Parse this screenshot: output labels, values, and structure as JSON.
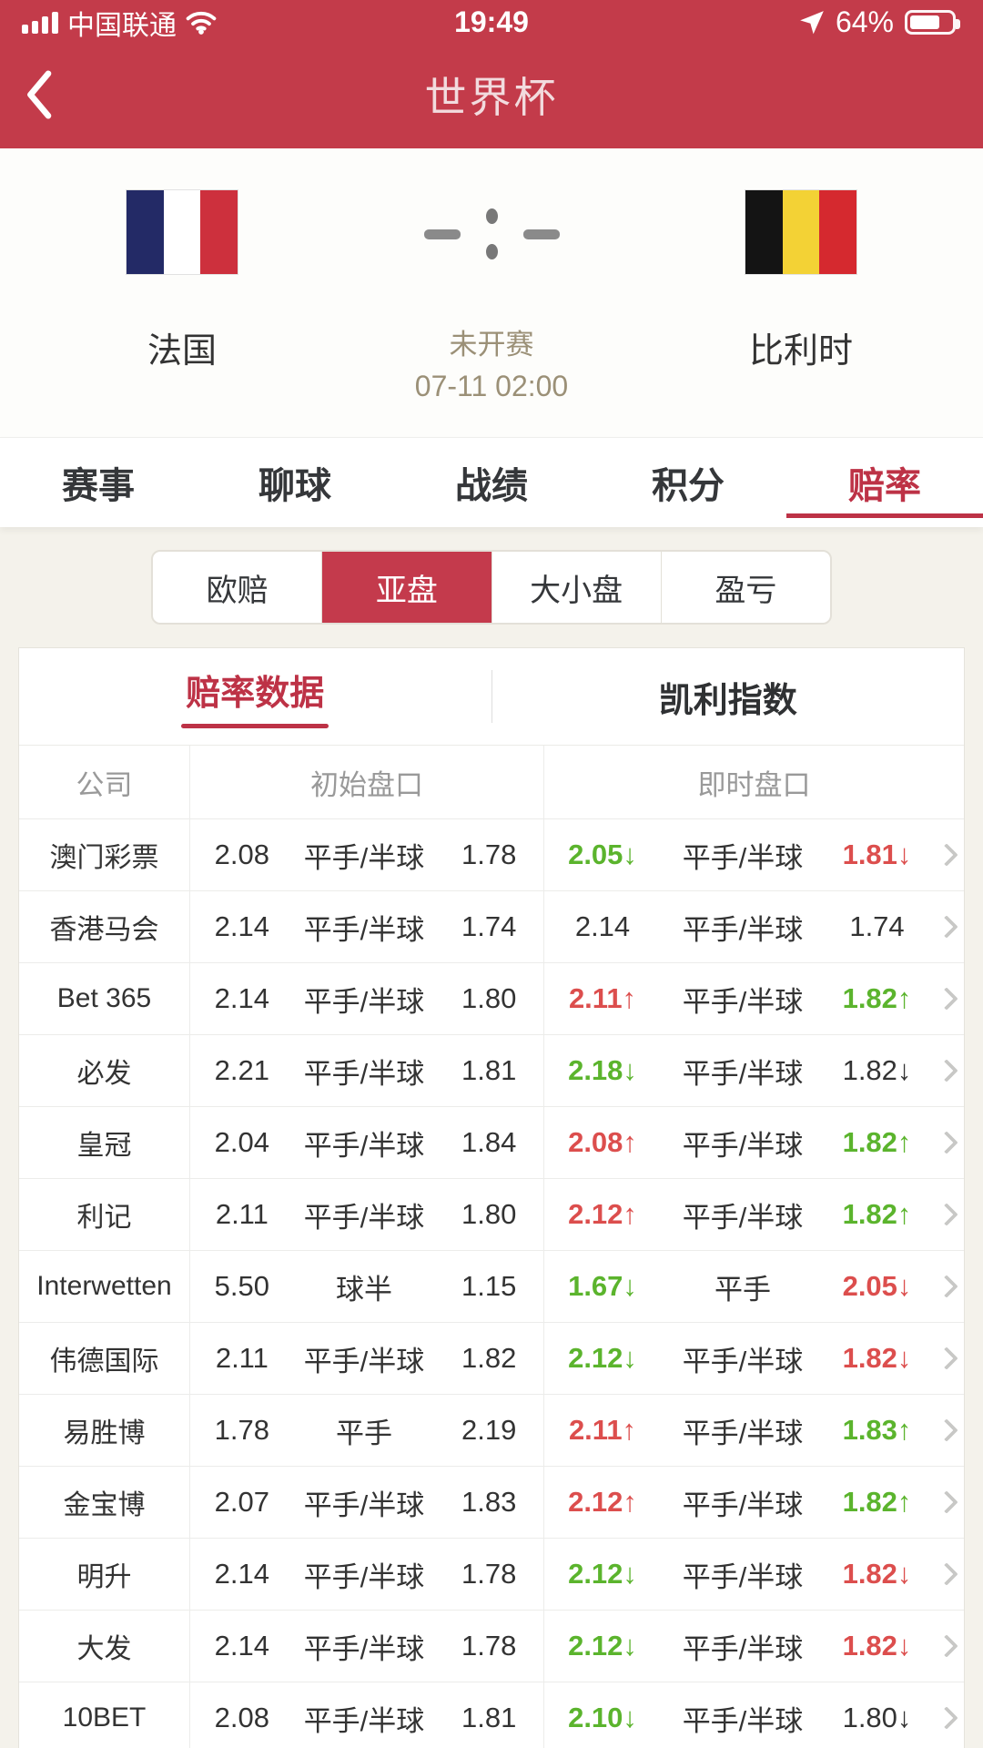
{
  "status_bar": {
    "carrier": "中国联通",
    "time": "19:49",
    "battery_percent": "64%",
    "battery_level": 0.64
  },
  "header": {
    "title": "世界杯"
  },
  "match": {
    "home": {
      "name": "法国",
      "flag": "france"
    },
    "away": {
      "name": "比利时",
      "flag": "belgium"
    },
    "score_home": "-",
    "score_away": "-",
    "status": "未开赛",
    "start_time": "07-11 02:00"
  },
  "tabs": [
    {
      "label": "赛事",
      "active": false
    },
    {
      "label": "聊球",
      "active": false
    },
    {
      "label": "战绩",
      "active": false
    },
    {
      "label": "积分",
      "active": false
    },
    {
      "label": "赔率",
      "active": true
    }
  ],
  "odds_tabs": [
    {
      "label": "欧赔",
      "active": false
    },
    {
      "label": "亚盘",
      "active": true
    },
    {
      "label": "大小盘",
      "active": false
    },
    {
      "label": "盈亏",
      "active": false
    }
  ],
  "card_tabs": [
    {
      "label": "赔率数据",
      "active": true
    },
    {
      "label": "凯利指数",
      "active": false
    }
  ],
  "table": {
    "columns": [
      "公司",
      "初始盘口",
      "即时盘口"
    ],
    "rows": [
      {
        "company": "澳门彩票",
        "init": [
          "2.08",
          "平手/半球",
          "1.78"
        ],
        "live": [
          {
            "value": "2.05",
            "arrow": "down",
            "color": "green"
          },
          {
            "value": "平手/半球",
            "arrow": "",
            "color": "dark"
          },
          {
            "value": "1.81",
            "arrow": "down",
            "color": "red"
          }
        ]
      },
      {
        "company": "香港马会",
        "init": [
          "2.14",
          "平手/半球",
          "1.74"
        ],
        "live": [
          {
            "value": "2.14",
            "arrow": "",
            "color": "dark"
          },
          {
            "value": "平手/半球",
            "arrow": "",
            "color": "dark"
          },
          {
            "value": "1.74",
            "arrow": "",
            "color": "dark"
          }
        ]
      },
      {
        "company": "Bet 365",
        "init": [
          "2.14",
          "平手/半球",
          "1.80"
        ],
        "live": [
          {
            "value": "2.11",
            "arrow": "up",
            "color": "red"
          },
          {
            "value": "平手/半球",
            "arrow": "",
            "color": "dark"
          },
          {
            "value": "1.82",
            "arrow": "up",
            "color": "green"
          }
        ]
      },
      {
        "company": "必发",
        "init": [
          "2.21",
          "平手/半球",
          "1.81"
        ],
        "live": [
          {
            "value": "2.18",
            "arrow": "down",
            "color": "green"
          },
          {
            "value": "平手/半球",
            "arrow": "",
            "color": "dark"
          },
          {
            "value": "1.82",
            "arrow": "down",
            "color": "dark"
          }
        ]
      },
      {
        "company": "皇冠",
        "init": [
          "2.04",
          "平手/半球",
          "1.84"
        ],
        "live": [
          {
            "value": "2.08",
            "arrow": "up",
            "color": "red"
          },
          {
            "value": "平手/半球",
            "arrow": "",
            "color": "dark"
          },
          {
            "value": "1.82",
            "arrow": "up",
            "color": "green"
          }
        ]
      },
      {
        "company": "利记",
        "init": [
          "2.11",
          "平手/半球",
          "1.80"
        ],
        "live": [
          {
            "value": "2.12",
            "arrow": "up",
            "color": "red"
          },
          {
            "value": "平手/半球",
            "arrow": "",
            "color": "dark"
          },
          {
            "value": "1.82",
            "arrow": "up",
            "color": "green"
          }
        ]
      },
      {
        "company": "Interwetten",
        "init": [
          "5.50",
          "球半",
          "1.15"
        ],
        "live": [
          {
            "value": "1.67",
            "arrow": "down",
            "color": "green"
          },
          {
            "value": "平手",
            "arrow": "",
            "color": "dark"
          },
          {
            "value": "2.05",
            "arrow": "down",
            "color": "red"
          }
        ]
      },
      {
        "company": "伟德国际",
        "init": [
          "2.11",
          "平手/半球",
          "1.82"
        ],
        "live": [
          {
            "value": "2.12",
            "arrow": "down",
            "color": "green"
          },
          {
            "value": "平手/半球",
            "arrow": "",
            "color": "dark"
          },
          {
            "value": "1.82",
            "arrow": "down",
            "color": "red"
          }
        ]
      },
      {
        "company": "易胜博",
        "init": [
          "1.78",
          "平手",
          "2.19"
        ],
        "live": [
          {
            "value": "2.11",
            "arrow": "up",
            "color": "red"
          },
          {
            "value": "平手/半球",
            "arrow": "",
            "color": "dark"
          },
          {
            "value": "1.83",
            "arrow": "up",
            "color": "green"
          }
        ]
      },
      {
        "company": "金宝博",
        "init": [
          "2.07",
          "平手/半球",
          "1.83"
        ],
        "live": [
          {
            "value": "2.12",
            "arrow": "up",
            "color": "red"
          },
          {
            "value": "平手/半球",
            "arrow": "",
            "color": "dark"
          },
          {
            "value": "1.82",
            "arrow": "up",
            "color": "green"
          }
        ]
      },
      {
        "company": "明升",
        "init": [
          "2.14",
          "平手/半球",
          "1.78"
        ],
        "live": [
          {
            "value": "2.12",
            "arrow": "down",
            "color": "green"
          },
          {
            "value": "平手/半球",
            "arrow": "",
            "color": "dark"
          },
          {
            "value": "1.82",
            "arrow": "down",
            "color": "red"
          }
        ]
      },
      {
        "company": "大发",
        "init": [
          "2.14",
          "平手/半球",
          "1.78"
        ],
        "live": [
          {
            "value": "2.12",
            "arrow": "down",
            "color": "green"
          },
          {
            "value": "平手/半球",
            "arrow": "",
            "color": "dark"
          },
          {
            "value": "1.82",
            "arrow": "down",
            "color": "red"
          }
        ]
      },
      {
        "company": "10BET",
        "init": [
          "2.08",
          "平手/半球",
          "1.81"
        ],
        "live": [
          {
            "value": "2.10",
            "arrow": "down",
            "color": "green"
          },
          {
            "value": "平手/半球",
            "arrow": "",
            "color": "dark"
          },
          {
            "value": "1.80",
            "arrow": "down",
            "color": "dark"
          }
        ]
      }
    ]
  },
  "colors": {
    "accent_red": "#c33b4a",
    "active_tab_red": "#bd3246",
    "odds_up_red": "#dc4e4d",
    "odds_down_green": "#5bb42d",
    "pending_tan": "#9b9077"
  }
}
